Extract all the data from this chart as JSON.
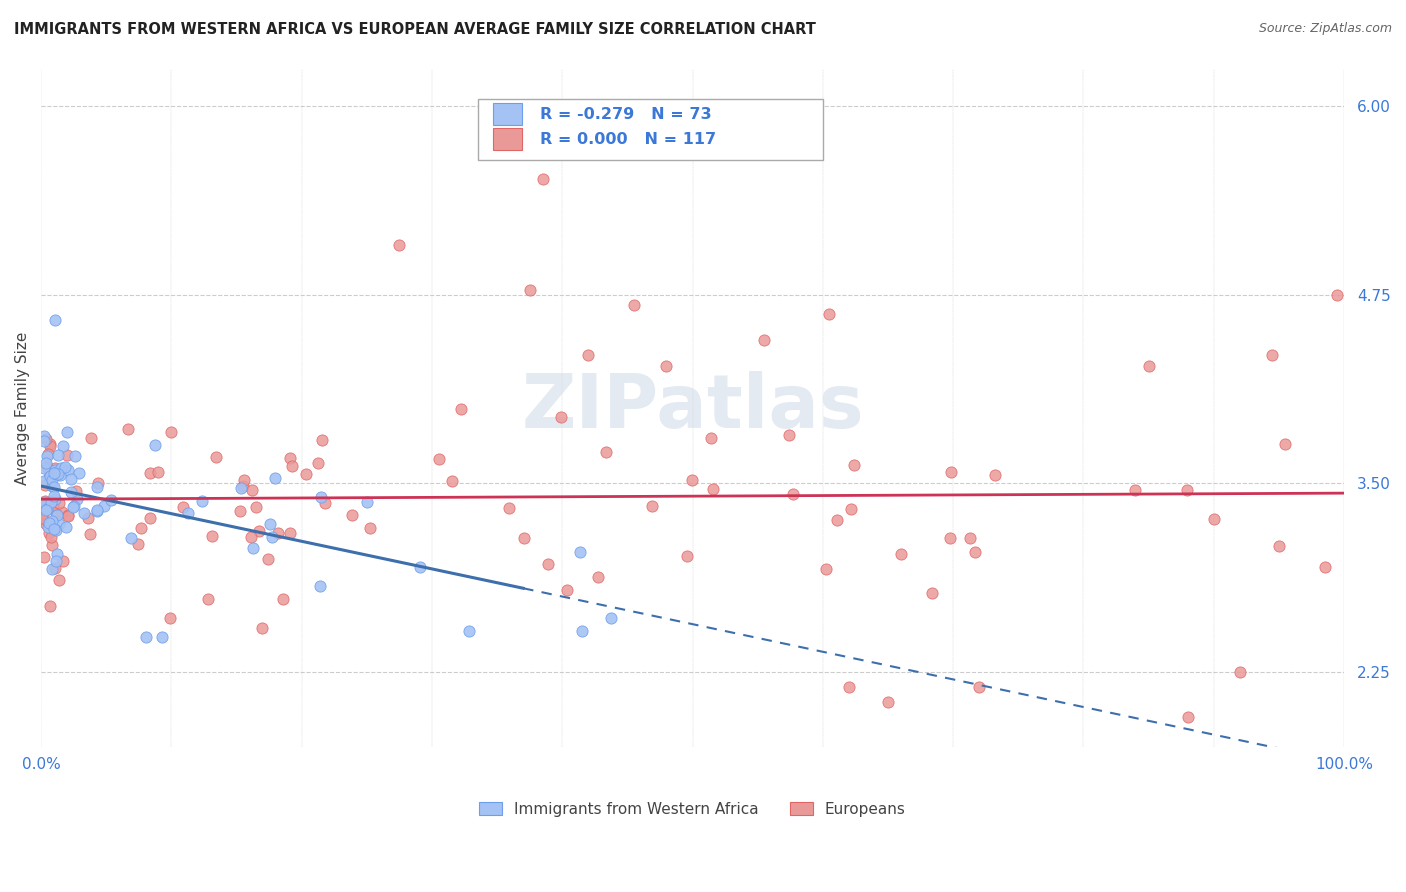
{
  "title": "IMMIGRANTS FROM WESTERN AFRICA VS EUROPEAN AVERAGE FAMILY SIZE CORRELATION CHART",
  "source": "Source: ZipAtlas.com",
  "ylabel": "Average Family Size",
  "xlim": [
    0,
    1
  ],
  "ylim": [
    1.75,
    6.25
  ],
  "yticks": [
    2.25,
    3.5,
    4.75,
    6.0
  ],
  "legend_label1": "Immigrants from Western Africa",
  "legend_label2": "Europeans",
  "R1": -0.279,
  "N1": 73,
  "R2": 0.0,
  "N2": 117,
  "blue_scatter_color": "#a4c2f4",
  "blue_edge_color": "#6d9eeb",
  "pink_scatter_color": "#ea9999",
  "pink_edge_color": "#e06666",
  "blue_line_color": "#3d6fad",
  "pink_line_color": "#cc3355",
  "watermark_color": "#ccd9e8",
  "background_color": "#ffffff",
  "grid_color": "#cccccc",
  "axis_color": "#3c78d8",
  "title_color": "#222222",
  "source_color": "#666666"
}
